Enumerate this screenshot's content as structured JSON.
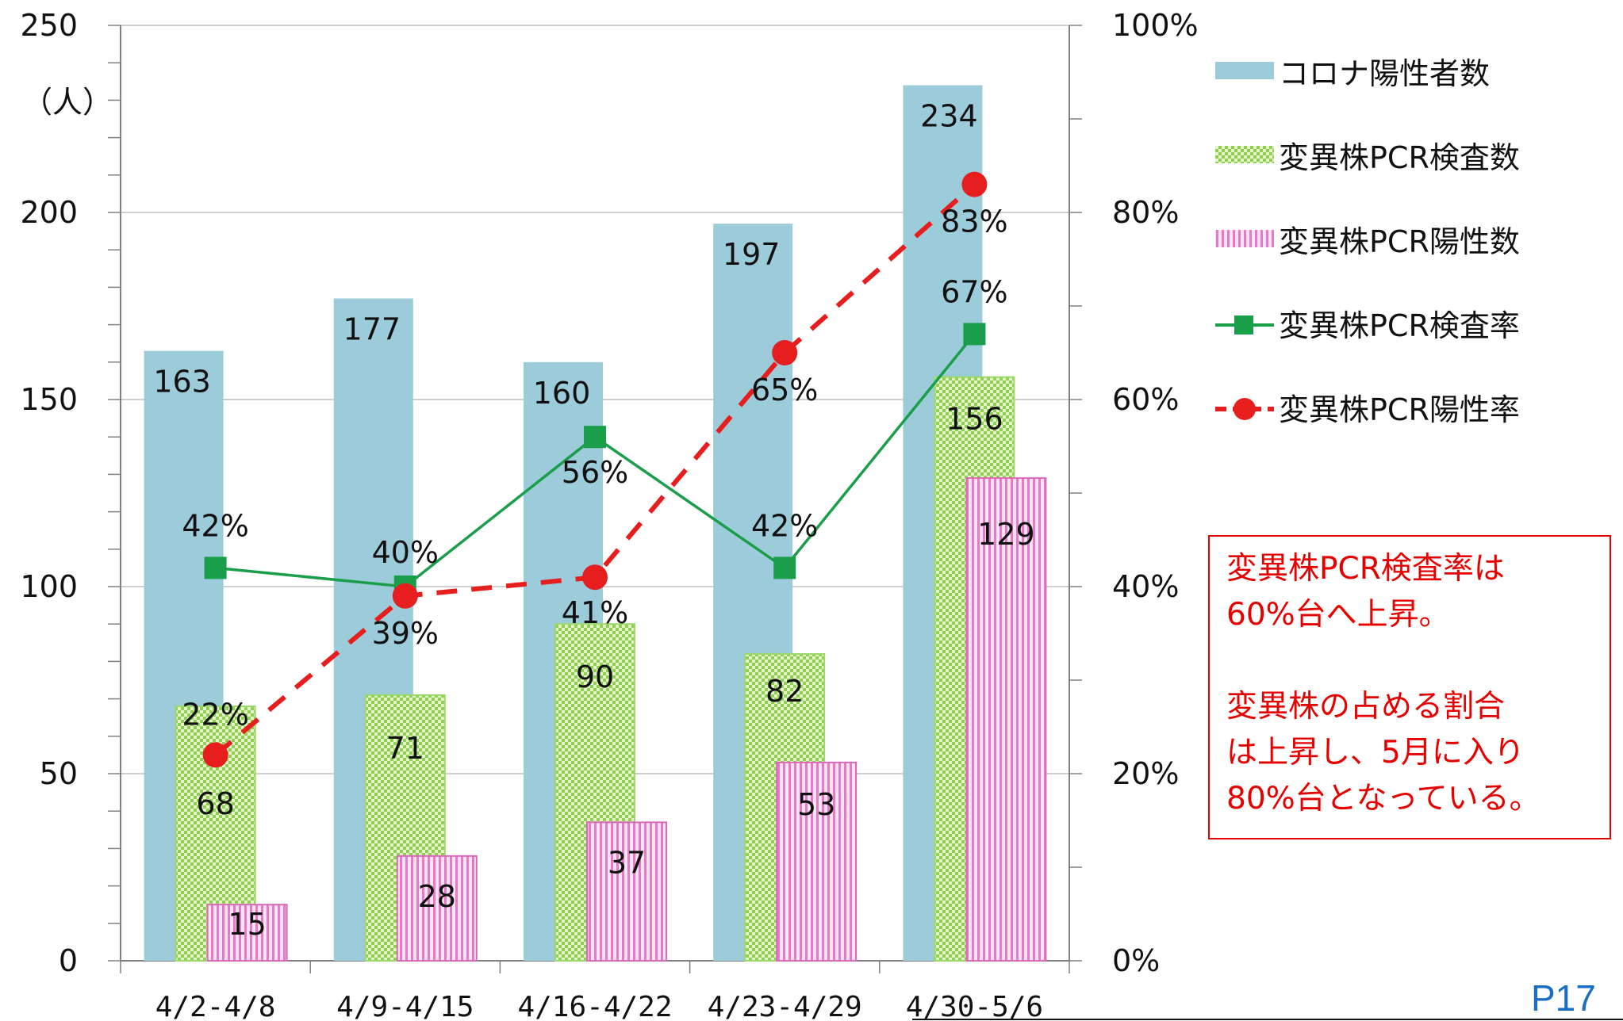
{
  "chart_data": {
    "type": "bar",
    "categories": [
      "4/2-4/8",
      "4/9-4/15",
      "4/16-4/22",
      "4/23-4/29",
      "4/30-5/6"
    ],
    "y_left": {
      "label": "（人）",
      "min": 0,
      "max": 250,
      "ticks": [
        0,
        50,
        100,
        150,
        200,
        250
      ]
    },
    "y_right": {
      "min": 0,
      "max": 100,
      "ticks": [
        "0%",
        "20%",
        "40%",
        "60%",
        "80%",
        "100%"
      ]
    },
    "series": [
      {
        "name": "コロナ陽性者数",
        "kind": "bar",
        "color": "#9ccbda",
        "values": [
          163,
          177,
          160,
          197,
          234
        ]
      },
      {
        "name": "変異株PCR検査数",
        "kind": "bar",
        "color": "#c6e99a",
        "pattern": "checker",
        "values": [
          68,
          71,
          90,
          82,
          156
        ]
      },
      {
        "name": "変異株PCR陽性数",
        "kind": "bar",
        "color": "#f3b4dc",
        "pattern": "vertical",
        "values": [
          15,
          28,
          37,
          53,
          129
        ]
      },
      {
        "name": "変異株PCR検査率",
        "kind": "line",
        "axis": "right",
        "color": "#1a9e4a",
        "marker": "square",
        "values": [
          42,
          40,
          56,
          42,
          67
        ],
        "labels": [
          "42%",
          "40%",
          "56%",
          "42%",
          "67%"
        ]
      },
      {
        "name": "変異株PCR陽性率",
        "kind": "line",
        "axis": "right",
        "color": "#e61e1e",
        "marker": "circle",
        "dashed": true,
        "values": [
          22,
          39,
          41,
          65,
          83
        ],
        "labels": [
          "22%",
          "39%",
          "41%",
          "65%",
          "83%"
        ]
      }
    ],
    "legend_position": "right",
    "grid": true
  },
  "annotation": {
    "lines": [
      "変異株PCR検査率は",
      "60%台へ上昇。",
      "",
      "変異株の占める割合",
      "は上昇し、5月に入り",
      "80%台となっている。"
    ]
  },
  "page_label": "P17"
}
